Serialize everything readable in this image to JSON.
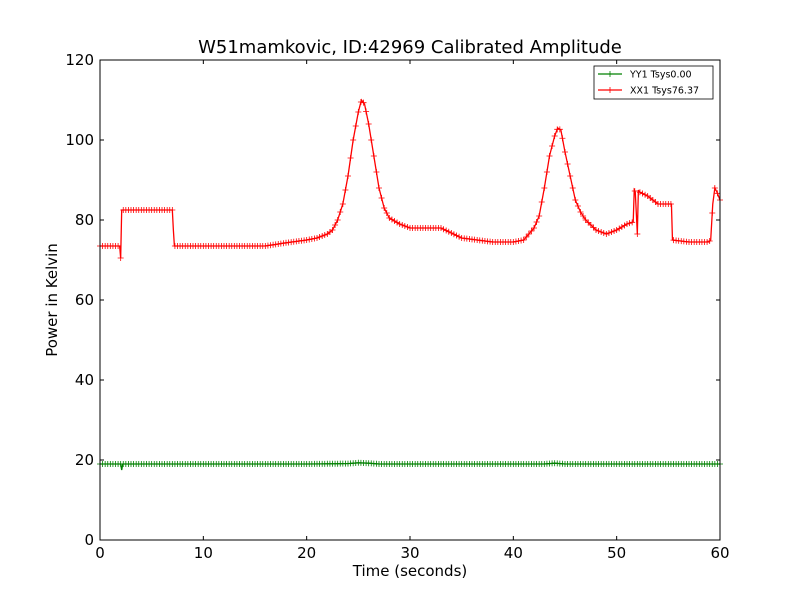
{
  "chart_data": {
    "type": "line",
    "title": "W51mamkovic, ID:42969 Calibrated Amplitude",
    "xlabel": "Time (seconds)",
    "ylabel": "Power in Kelvin",
    "xlim": [
      0,
      60
    ],
    "ylim": [
      0,
      120
    ],
    "xticks": [
      0,
      10,
      20,
      30,
      40,
      50,
      60
    ],
    "yticks": [
      0,
      20,
      40,
      60,
      80,
      100,
      120
    ],
    "xtick_labels": [
      "0",
      "10",
      "20",
      "30",
      "40",
      "50",
      "60"
    ],
    "ytick_labels": [
      "0",
      "20",
      "40",
      "60",
      "80",
      "100",
      "120"
    ],
    "grid": false,
    "legend_position": "top-right",
    "marker": "+",
    "series": [
      {
        "name": "YY1 Tsys0.00",
        "color": "#008000",
        "x": [
          0,
          2,
          2.1,
          2.2,
          12,
          20,
          24,
          25,
          26,
          27,
          35,
          43,
          44,
          45,
          52,
          59,
          60
        ],
        "y": [
          19,
          19,
          17.5,
          19,
          19,
          19,
          19.1,
          19.3,
          19.2,
          19,
          19,
          19,
          19.2,
          19,
          19,
          19,
          19
        ]
      },
      {
        "name": "XX1 Tsys76.37",
        "color": "#ff0000",
        "x": [
          0,
          1.9,
          2.0,
          2.1,
          2.2,
          4,
          7,
          7.1,
          7.2,
          12,
          16,
          18,
          20,
          21,
          22,
          22.5,
          23,
          23.5,
          24,
          24.5,
          25,
          25.3,
          25.6,
          26,
          26.5,
          27,
          27.5,
          28,
          29,
          30,
          33,
          35,
          38,
          40,
          41,
          42,
          42.5,
          43,
          43.5,
          44,
          44.3,
          44.6,
          45,
          45.5,
          46,
          46.5,
          47,
          48,
          49,
          50,
          51,
          51.6,
          51.7,
          51.8,
          52.0,
          52.1,
          52.2,
          53,
          54,
          55.3,
          55.4,
          57,
          58.9,
          59.1,
          59.3,
          59.5,
          59.7,
          60
        ],
        "y": [
          73.5,
          73.5,
          70.5,
          82.5,
          82.5,
          82.5,
          82.5,
          77.5,
          73.5,
          73.5,
          73.5,
          74.3,
          75,
          75.5,
          76.5,
          77.5,
          80,
          84,
          91,
          100,
          107,
          110,
          109,
          104,
          96,
          88,
          83,
          80.5,
          79,
          78,
          78,
          75.5,
          74.5,
          74.5,
          75,
          78,
          81,
          88,
          96,
          101,
          103,
          102.5,
          97,
          91,
          85,
          82,
          80,
          77.5,
          76.5,
          77.5,
          79,
          79.5,
          87.5,
          87,
          76.5,
          87.5,
          87,
          86,
          84,
          84,
          75,
          74.5,
          74.5,
          75,
          84,
          88,
          87,
          85
        ]
      }
    ]
  }
}
